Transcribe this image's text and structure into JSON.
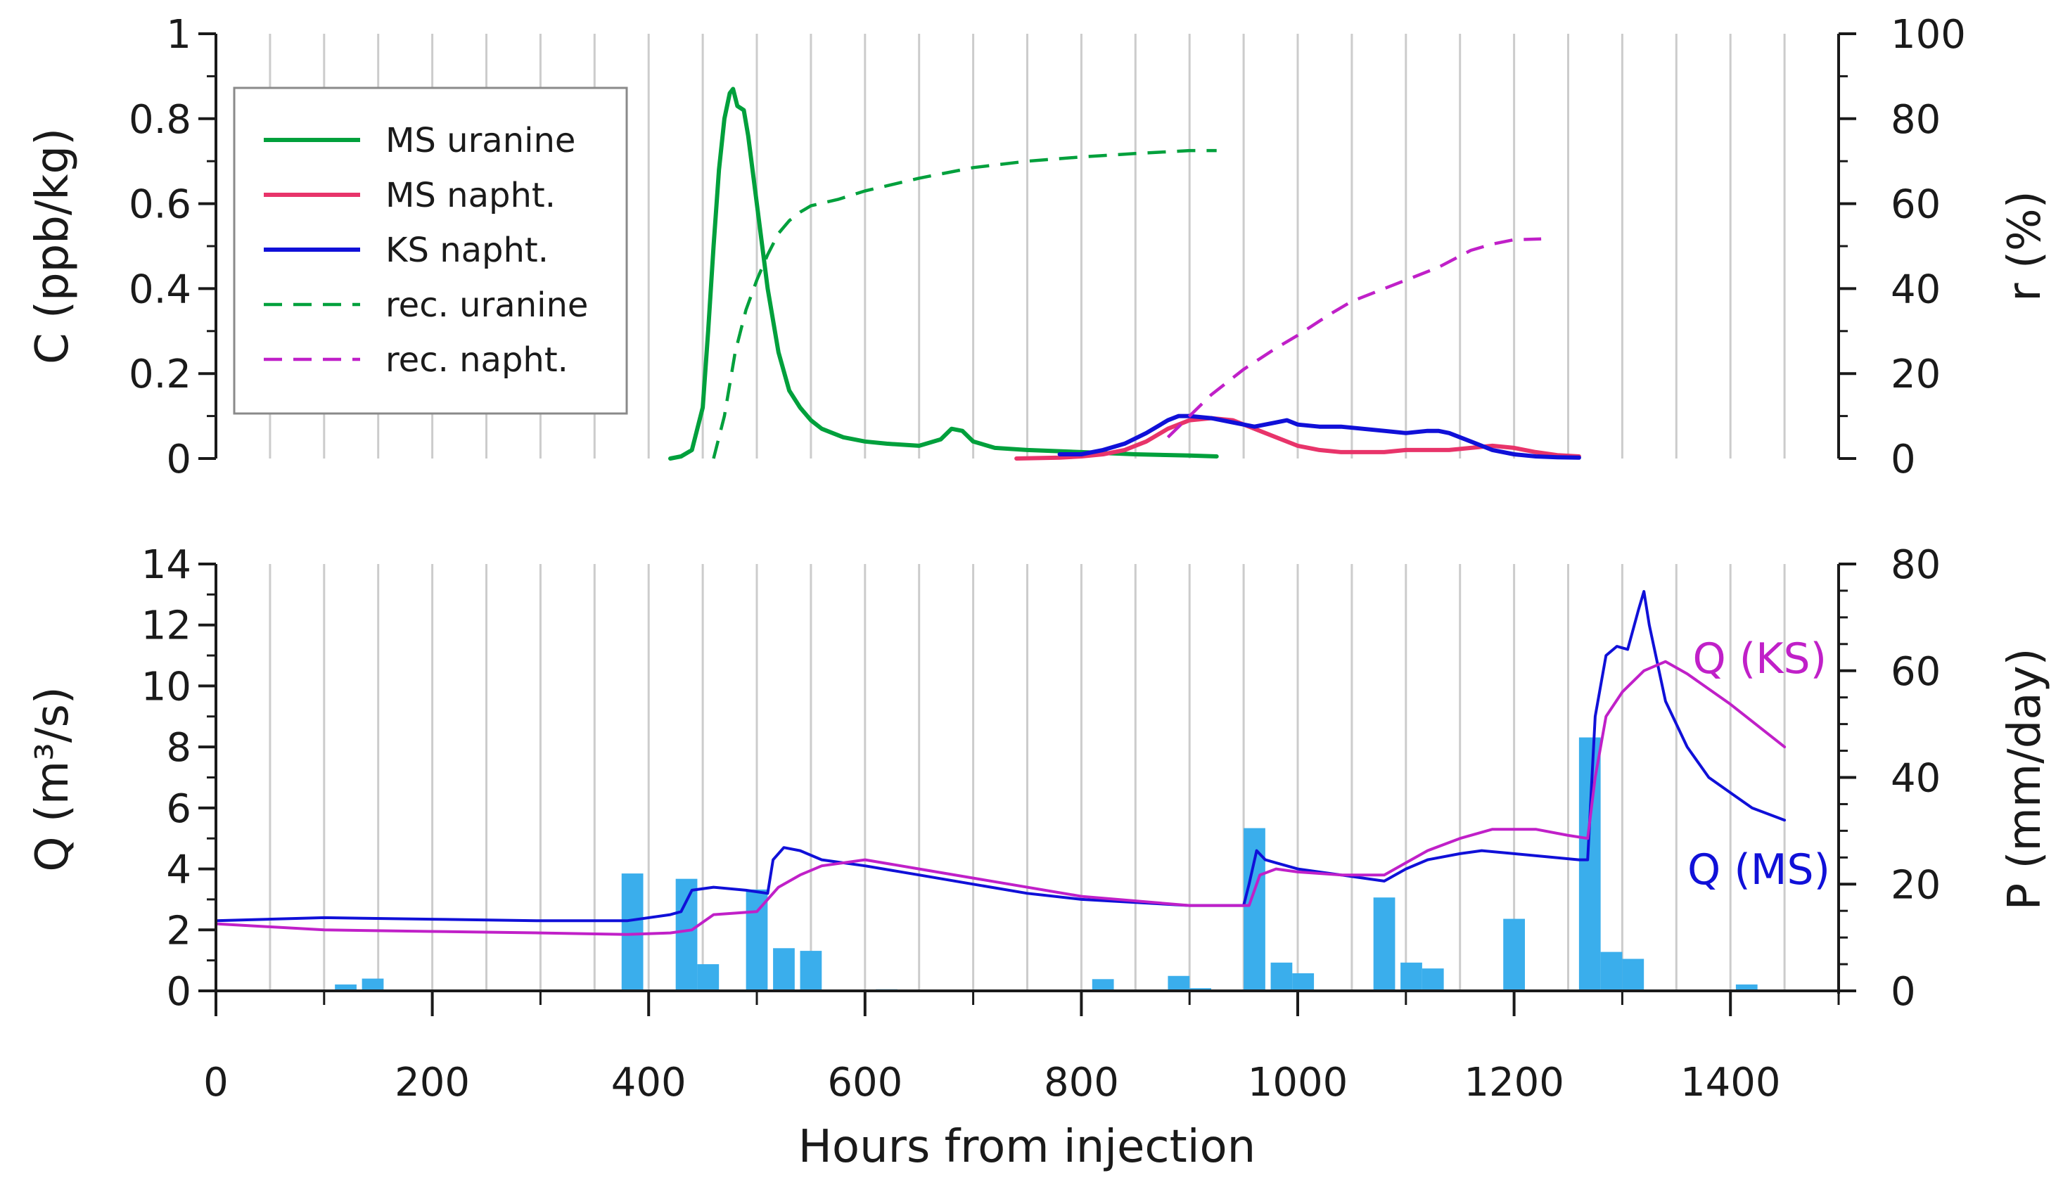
{
  "chart_data": [
    {
      "type": "line",
      "panel": "top",
      "xlabel": "",
      "ylabel": "C (ppb/kg)",
      "y2label": "r (%)",
      "xlim": [
        0,
        1500
      ],
      "ylim": [
        0,
        1
      ],
      "y2lim": [
        0,
        100
      ],
      "yticks": [
        "0",
        "0.2",
        "0.4",
        "0.6",
        "0.8",
        "1"
      ],
      "y2ticks": [
        "0",
        "20",
        "40",
        "60",
        "80",
        "100"
      ],
      "grid": "vertical lines every 50 h",
      "legend": [
        {
          "label": "MS uranine",
          "color": "#00a03c",
          "style": "solid"
        },
        {
          "label": "MS napht.",
          "color": "#e8346a",
          "style": "solid"
        },
        {
          "label": "KS napht.",
          "color": "#1010d8",
          "style": "solid"
        },
        {
          "label": "rec. uranine",
          "color": "#00a03c",
          "style": "dashed"
        },
        {
          "label": "rec. napht.",
          "color": "#c020c8",
          "style": "dashed"
        }
      ],
      "legend_position": "top-left",
      "series": [
        {
          "name": "MS uranine",
          "axis": "left",
          "color": "#00a03c",
          "style": "solid",
          "x": [
            420,
            430,
            440,
            450,
            455,
            460,
            465,
            470,
            475,
            478,
            482,
            488,
            492,
            500,
            510,
            520,
            530,
            540,
            550,
            560,
            570,
            580,
            600,
            620,
            650,
            670,
            680,
            690,
            700,
            720,
            750,
            800,
            850,
            900,
            925
          ],
          "y": [
            0.0,
            0.005,
            0.02,
            0.12,
            0.3,
            0.5,
            0.68,
            0.8,
            0.86,
            0.87,
            0.83,
            0.82,
            0.76,
            0.6,
            0.4,
            0.25,
            0.16,
            0.12,
            0.09,
            0.07,
            0.06,
            0.05,
            0.04,
            0.035,
            0.03,
            0.045,
            0.07,
            0.065,
            0.04,
            0.025,
            0.02,
            0.015,
            0.01,
            0.007,
            0.005
          ]
        },
        {
          "name": "MS napht.",
          "axis": "left",
          "color": "#e8346a",
          "style": "solid",
          "x": [
            740,
            760,
            780,
            800,
            820,
            840,
            860,
            880,
            900,
            920,
            940,
            960,
            980,
            1000,
            1020,
            1040,
            1060,
            1080,
            1100,
            1120,
            1140,
            1160,
            1180,
            1200,
            1220,
            1240,
            1260
          ],
          "y": [
            0.0,
            0.001,
            0.002,
            0.005,
            0.01,
            0.02,
            0.04,
            0.07,
            0.09,
            0.095,
            0.09,
            0.07,
            0.05,
            0.03,
            0.02,
            0.015,
            0.015,
            0.015,
            0.02,
            0.02,
            0.02,
            0.025,
            0.03,
            0.025,
            0.015,
            0.008,
            0.005
          ]
        },
        {
          "name": "KS napht.",
          "axis": "left",
          "color": "#1010d8",
          "style": "solid",
          "x": [
            780,
            800,
            820,
            840,
            860,
            880,
            890,
            900,
            920,
            940,
            960,
            970,
            980,
            990,
            1000,
            1020,
            1040,
            1060,
            1080,
            1100,
            1120,
            1130,
            1140,
            1160,
            1180,
            1200,
            1220,
            1240,
            1260
          ],
          "y": [
            0.01,
            0.01,
            0.02,
            0.035,
            0.06,
            0.09,
            0.1,
            0.1,
            0.095,
            0.085,
            0.075,
            0.08,
            0.085,
            0.09,
            0.08,
            0.075,
            0.075,
            0.07,
            0.065,
            0.06,
            0.065,
            0.065,
            0.06,
            0.04,
            0.02,
            0.01,
            0.005,
            0.003,
            0.002
          ]
        },
        {
          "name": "rec. uranine",
          "axis": "right",
          "color": "#00a03c",
          "style": "dashed",
          "x": [
            460,
            470,
            480,
            490,
            500,
            510,
            520,
            530,
            540,
            550,
            575,
            600,
            650,
            700,
            750,
            800,
            850,
            900,
            925
          ],
          "y": [
            0,
            10,
            25,
            35,
            42,
            48,
            53,
            56,
            58,
            59.5,
            61,
            63,
            66,
            68.5,
            70,
            71,
            71.8,
            72.5,
            72.5
          ]
        },
        {
          "name": "rec. napht.",
          "axis": "right",
          "color": "#c020c8",
          "style": "dashed",
          "x": [
            880,
            900,
            920,
            950,
            980,
            1000,
            1030,
            1050,
            1080,
            1100,
            1130,
            1160,
            1180,
            1200,
            1225
          ],
          "y": [
            5,
            10,
            15,
            21,
            26,
            29,
            34,
            37,
            40,
            42,
            45,
            49,
            50.5,
            51.5,
            51.7
          ]
        }
      ]
    },
    {
      "type": "line",
      "panel": "bottom",
      "xlabel": "Hours from injection",
      "ylabel": "Q (m³/s)",
      "y2label": "P (mm/day)",
      "xlim": [
        0,
        1500
      ],
      "ylim": [
        0,
        14
      ],
      "y2lim": [
        0,
        80
      ],
      "xticks": [
        "0",
        "200",
        "400",
        "600",
        "800",
        "1000",
        "1200",
        "1400"
      ],
      "yticks": [
        "0",
        "2",
        "4",
        "6",
        "8",
        "10",
        "12",
        "14"
      ],
      "y2ticks": [
        "0",
        "20",
        "40",
        "60",
        "80"
      ],
      "grid": "vertical lines every 50 h",
      "annotations": [
        {
          "text": "Q (KS)",
          "color": "#c020c8"
        },
        {
          "text": "Q (MS)",
          "color": "#1010d8"
        }
      ],
      "series": [
        {
          "name": "Q (MS)",
          "axis": "left",
          "color": "#1010d8",
          "style": "solid",
          "x": [
            0,
            100,
            200,
            300,
            380,
            420,
            430,
            440,
            460,
            490,
            510,
            515,
            525,
            540,
            560,
            600,
            650,
            700,
            750,
            800,
            850,
            900,
            950,
            955,
            962,
            970,
            980,
            1000,
            1040,
            1080,
            1100,
            1120,
            1150,
            1170,
            1200,
            1230,
            1260,
            1268,
            1275,
            1285,
            1295,
            1305,
            1315,
            1320,
            1325,
            1340,
            1360,
            1380,
            1400,
            1420,
            1450
          ],
          "y": [
            2.3,
            2.4,
            2.35,
            2.3,
            2.3,
            2.5,
            2.6,
            3.3,
            3.4,
            3.3,
            3.2,
            4.3,
            4.7,
            4.6,
            4.3,
            4.1,
            3.8,
            3.5,
            3.2,
            3.0,
            2.9,
            2.8,
            2.8,
            3.5,
            4.6,
            4.3,
            4.2,
            4.0,
            3.8,
            3.6,
            4.0,
            4.3,
            4.5,
            4.6,
            4.5,
            4.4,
            4.3,
            4.3,
            9.0,
            11.0,
            11.3,
            11.2,
            12.5,
            13.1,
            12.0,
            9.5,
            8.0,
            7.0,
            6.5,
            6.0,
            5.6
          ]
        },
        {
          "name": "Q (KS)",
          "axis": "left",
          "color": "#c020c8",
          "style": "solid",
          "x": [
            0,
            100,
            200,
            300,
            380,
            420,
            440,
            460,
            500,
            510,
            520,
            540,
            560,
            600,
            650,
            700,
            800,
            900,
            955,
            965,
            980,
            1000,
            1040,
            1080,
            1100,
            1120,
            1150,
            1180,
            1200,
            1220,
            1250,
            1268,
            1275,
            1285,
            1300,
            1320,
            1340,
            1360,
            1400,
            1450
          ],
          "y": [
            2.2,
            2.0,
            1.95,
            1.9,
            1.85,
            1.9,
            2.0,
            2.5,
            2.6,
            3.0,
            3.4,
            3.8,
            4.1,
            4.3,
            4.0,
            3.7,
            3.1,
            2.8,
            2.8,
            3.8,
            4.0,
            3.9,
            3.8,
            3.8,
            4.2,
            4.6,
            5.0,
            5.3,
            5.3,
            5.3,
            5.1,
            5.0,
            7.0,
            9.0,
            9.8,
            10.5,
            10.8,
            10.4,
            9.4,
            8.0
          ]
        },
        {
          "name": "P",
          "axis": "right",
          "type": "bar",
          "color": "#3aaeec",
          "x": [
            120,
            145,
            385,
            435,
            455,
            500,
            525,
            550,
            620,
            820,
            890,
            910,
            960,
            985,
            1005,
            1080,
            1105,
            1125,
            1200,
            1270,
            1290,
            1310,
            1415
          ],
          "y": [
            1.2,
            2.3,
            22,
            21,
            5,
            19,
            8,
            7.5,
            0.3,
            2.2,
            2.8,
            0.5,
            30.5,
            5.3,
            3.3,
            17.5,
            5.3,
            4.2,
            13.5,
            47.5,
            7.3,
            6.0,
            1.2
          ]
        }
      ]
    }
  ]
}
